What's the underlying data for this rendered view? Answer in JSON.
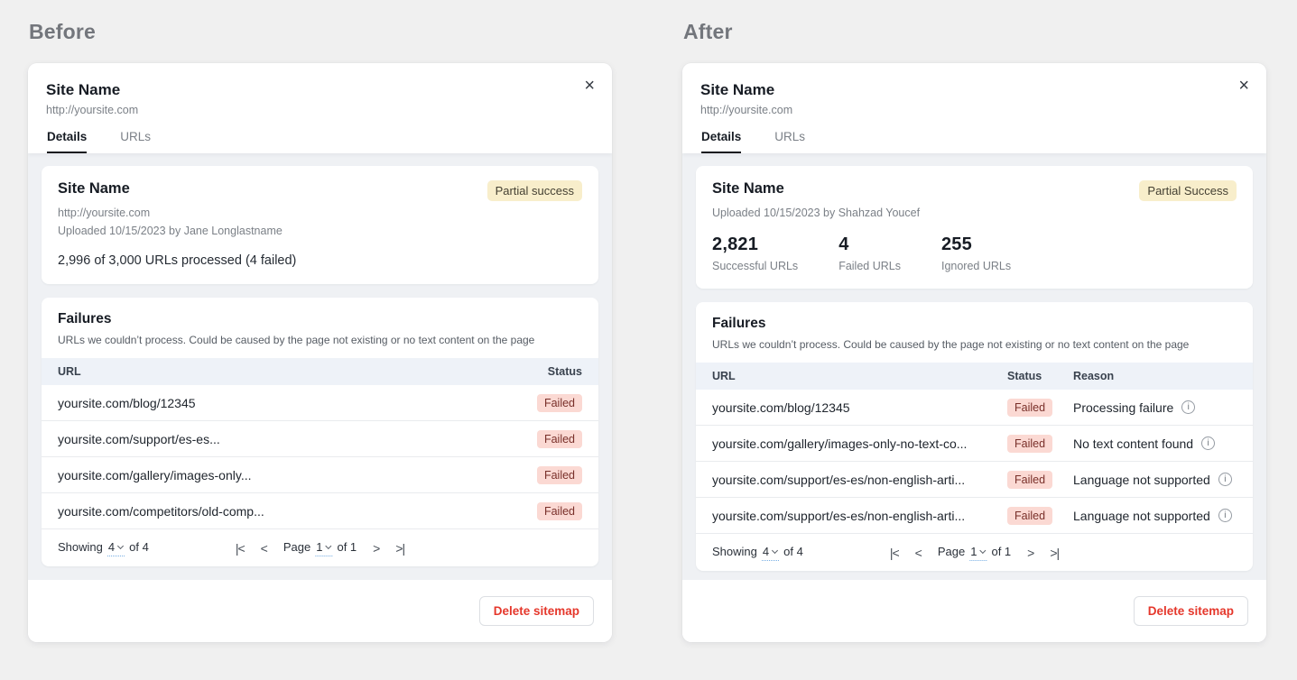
{
  "icons": {
    "close": "×",
    "first_page": "|<",
    "prev_page": "<",
    "next_page": ">",
    "last_page": ">|",
    "info": "i"
  },
  "colors": {
    "accent_red": "#e5372b",
    "badge_partial_bg": "#f8eecb",
    "badge_failed_bg": "#fbd9d3",
    "badge_failed_text": "#79302a",
    "table_header_bg": "#eef2f8",
    "content_bg": "#eff1f4"
  },
  "before": {
    "heading": "Before",
    "dialog": {
      "title": "Site Name",
      "url": "http://yoursite.com",
      "tabs": {
        "details": "Details",
        "urls": "URLs"
      },
      "details": {
        "title": "Site Name",
        "badge": "Partial success",
        "url": "http://yoursite.com",
        "uploaded": "Uploaded 10/15/2023 by Jane Longlastname",
        "summary": "2,996 of 3,000 URLs processed (4 failed)"
      },
      "failures": {
        "title": "Failures",
        "subtitle": "URLs we couldn’t process. Could be caused by the page not existing or no text content on the page",
        "col_url": "URL",
        "col_status": "Status",
        "rows": [
          {
            "url": "yoursite.com/blog/12345",
            "status": "Failed"
          },
          {
            "url": "yoursite.com/support/es-es...",
            "status": "Failed"
          },
          {
            "url": "yoursite.com/gallery/images-only...",
            "status": "Failed"
          },
          {
            "url": "yoursite.com/competitors/old-comp...",
            "status": "Failed"
          }
        ],
        "pagination": {
          "showing": "Showing",
          "per_page": "4",
          "of_total": "of 4",
          "page": "Page",
          "page_num": "1",
          "page_of": "of 1"
        }
      },
      "delete_button": "Delete sitemap"
    }
  },
  "after": {
    "heading": "After",
    "dialog": {
      "title": "Site Name",
      "url": "http://yoursite.com",
      "tabs": {
        "details": "Details",
        "urls": "URLs"
      },
      "details": {
        "title": "Site Name",
        "badge": "Partial Success",
        "uploaded": "Uploaded 10/15/2023 by Shahzad Youcef",
        "stats": [
          {
            "value": "2,821",
            "label": "Successful URLs"
          },
          {
            "value": "4",
            "label": "Failed URLs"
          },
          {
            "value": "255",
            "label": "Ignored URLs"
          }
        ]
      },
      "failures": {
        "title": "Failures",
        "subtitle": "URLs we couldn’t process. Could be caused by the page not existing or no text content on the page",
        "col_url": "URL",
        "col_status": "Status",
        "col_reason": "Reason",
        "rows": [
          {
            "url": "yoursite.com/blog/12345",
            "status": "Failed",
            "reason": "Processing failure"
          },
          {
            "url": "yoursite.com/gallery/images-only-no-text-co...",
            "status": "Failed",
            "reason": "No text content found"
          },
          {
            "url": "yoursite.com/support/es-es/non-english-arti...",
            "status": "Failed",
            "reason": "Language not supported"
          },
          {
            "url": "yoursite.com/support/es-es/non-english-arti...",
            "status": "Failed",
            "reason": "Language not supported"
          }
        ],
        "pagination": {
          "showing": "Showing",
          "per_page": "4",
          "of_total": "of 4",
          "page": "Page",
          "page_num": "1",
          "page_of": "of 1"
        }
      },
      "delete_button": "Delete sitemap"
    }
  }
}
